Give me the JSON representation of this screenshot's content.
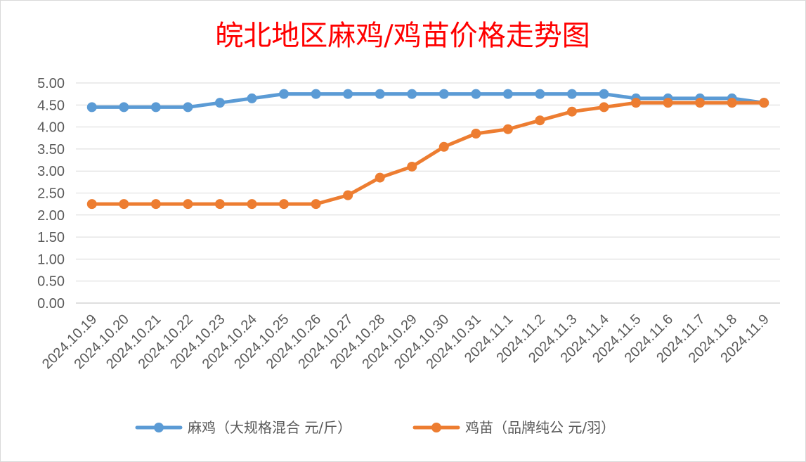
{
  "chart_data": {
    "type": "line",
    "title": "皖北地区麻鸡/鸡苗价格走势图",
    "xlabel": "",
    "ylabel": "",
    "categories": [
      "2024.10.19",
      "2024.10.20",
      "2024.10.21",
      "2024.10.22",
      "2024.10.23",
      "2024.10.24",
      "2024.10.25",
      "2024.10.26",
      "2024.10.27",
      "2024.10.28",
      "2024.10.29",
      "2024.10.30",
      "2024.10.31",
      "2024.11.1",
      "2024.11.2",
      "2024.11.3",
      "2024.11.4",
      "2024.11.5",
      "2024.11.6",
      "2024.11.7",
      "2024.11.8",
      "2024.11.9"
    ],
    "series": [
      {
        "name": "麻鸡（大规格混合 元/斤）",
        "color": "#5b9bd5",
        "values": [
          4.45,
          4.45,
          4.45,
          4.45,
          4.55,
          4.65,
          4.75,
          4.75,
          4.75,
          4.75,
          4.75,
          4.75,
          4.75,
          4.75,
          4.75,
          4.75,
          4.75,
          4.65,
          4.65,
          4.65,
          4.65,
          4.55
        ]
      },
      {
        "name": "鸡苗（品牌纯公 元/羽）",
        "color": "#ed7d31",
        "values": [
          2.25,
          2.25,
          2.25,
          2.25,
          2.25,
          2.25,
          2.25,
          2.25,
          2.45,
          2.85,
          3.1,
          3.55,
          3.85,
          3.95,
          4.15,
          4.35,
          4.45,
          4.55,
          4.55,
          4.55,
          4.55,
          4.55
        ]
      }
    ],
    "ylim": [
      0,
      5
    ],
    "yticks": [
      "0.00",
      "0.50",
      "1.00",
      "1.50",
      "2.00",
      "2.50",
      "3.00",
      "3.50",
      "4.00",
      "4.50",
      "5.00"
    ],
    "grid": true,
    "legend": "bottom"
  }
}
